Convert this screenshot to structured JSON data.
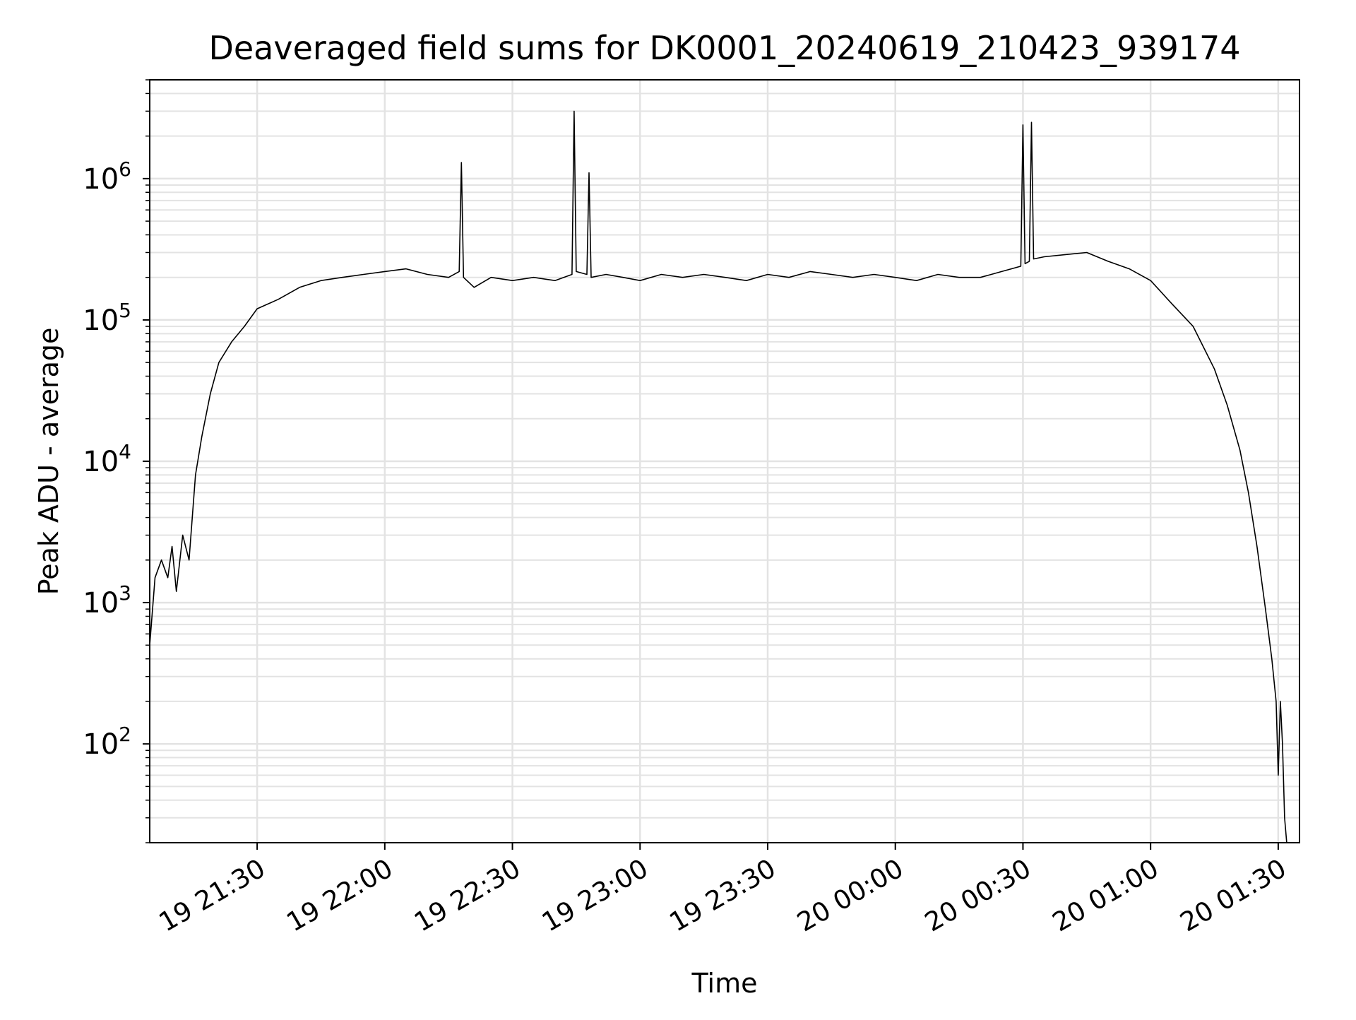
{
  "chart_data": {
    "type": "line",
    "title": "Deaveraged field sums for DK0001_20240619_210423_939174",
    "xlabel": "Time",
    "ylabel": "Peak ADU - average",
    "yscale": "log",
    "ylim": [
      20,
      5000000
    ],
    "xlim": [
      "2024-06-19 21:04:45",
      "2024-06-20 01:35:00"
    ],
    "grid": true,
    "line_color": "#000000",
    "x_ticks": [
      {
        "time": "2024-06-19 21:30",
        "label": "19 21:30"
      },
      {
        "time": "2024-06-19 22:00",
        "label": "19 22:00"
      },
      {
        "time": "2024-06-19 22:30",
        "label": "19 22:30"
      },
      {
        "time": "2024-06-19 23:00",
        "label": "19 23:00"
      },
      {
        "time": "2024-06-19 23:30",
        "label": "19 23:30"
      },
      {
        "time": "2024-06-20 00:00",
        "label": "20 00:00"
      },
      {
        "time": "2024-06-20 00:30",
        "label": "20 00:30"
      },
      {
        "time": "2024-06-20 01:00",
        "label": "20 01:00"
      },
      {
        "time": "2024-06-20 01:30",
        "label": "20 01:30"
      }
    ],
    "y_ticks": [
      {
        "value": 100,
        "base": "10",
        "exp": "2"
      },
      {
        "value": 1000,
        "base": "10",
        "exp": "3"
      },
      {
        "value": 10000,
        "base": "10",
        "exp": "4"
      },
      {
        "value": 100000,
        "base": "10",
        "exp": "5"
      },
      {
        "value": 1000000,
        "base": "10",
        "exp": "6"
      }
    ],
    "series": [
      {
        "x": [
          "2024-06-19 21:04:45",
          "2024-06-19 21:06:00",
          "2024-06-19 21:07:30",
          "2024-06-19 21:09:00",
          "2024-06-19 21:10:00",
          "2024-06-19 21:11:00",
          "2024-06-19 21:12:30",
          "2024-06-19 21:14:00",
          "2024-06-19 21:15:30",
          "2024-06-19 21:17:00",
          "2024-06-19 21:19:00",
          "2024-06-19 21:21:00",
          "2024-06-19 21:24:00",
          "2024-06-19 21:27:00",
          "2024-06-19 21:30:00",
          "2024-06-19 21:35:00",
          "2024-06-19 21:40:00",
          "2024-06-19 21:45:00",
          "2024-06-19 21:50:00",
          "2024-06-19 21:55:00",
          "2024-06-19 22:00:00",
          "2024-06-19 22:05:00",
          "2024-06-19 22:10:00",
          "2024-06-19 22:15:00",
          "2024-06-19 22:17:30",
          "2024-06-19 22:18:00",
          "2024-06-19 22:18:30",
          "2024-06-19 22:21:00",
          "2024-06-19 22:25:00",
          "2024-06-19 22:30:00",
          "2024-06-19 22:35:00",
          "2024-06-19 22:40:00",
          "2024-06-19 22:44:00",
          "2024-06-19 22:44:30",
          "2024-06-19 22:45:00",
          "2024-06-19 22:47:30",
          "2024-06-19 22:48:00",
          "2024-06-19 22:48:30",
          "2024-06-19 22:52:00",
          "2024-06-19 22:56:00",
          "2024-06-19 23:00:00",
          "2024-06-19 23:05:00",
          "2024-06-19 23:10:00",
          "2024-06-19 23:15:00",
          "2024-06-19 23:20:00",
          "2024-06-19 23:25:00",
          "2024-06-19 23:30:00",
          "2024-06-19 23:35:00",
          "2024-06-19 23:40:00",
          "2024-06-19 23:45:00",
          "2024-06-19 23:50:00",
          "2024-06-19 23:55:00",
          "2024-06-20 00:00:00",
          "2024-06-20 00:05:00",
          "2024-06-20 00:10:00",
          "2024-06-20 00:15:00",
          "2024-06-20 00:20:00",
          "2024-06-20 00:25:00",
          "2024-06-20 00:29:30",
          "2024-06-20 00:30:00",
          "2024-06-20 00:30:30",
          "2024-06-20 00:31:30",
          "2024-06-20 00:32:00",
          "2024-06-20 00:32:30",
          "2024-06-20 00:35:00",
          "2024-06-20 00:40:00",
          "2024-06-20 00:45:00",
          "2024-06-20 00:50:00",
          "2024-06-20 00:55:00",
          "2024-06-20 01:00:00",
          "2024-06-20 01:05:00",
          "2024-06-20 01:10:00",
          "2024-06-20 01:15:00",
          "2024-06-20 01:18:00",
          "2024-06-20 01:21:00",
          "2024-06-20 01:23:00",
          "2024-06-20 01:25:00",
          "2024-06-20 01:27:00",
          "2024-06-20 01:28:30",
          "2024-06-20 01:29:30",
          "2024-06-20 01:30:00",
          "2024-06-20 01:30:30",
          "2024-06-20 01:31:00",
          "2024-06-20 01:31:30",
          "2024-06-20 01:32:00"
        ],
        "y": [
          500,
          1500,
          2000,
          1500,
          2500,
          1200,
          3000,
          2000,
          8000,
          15000,
          30000,
          50000,
          70000,
          90000,
          120000,
          140000,
          170000,
          190000,
          200000,
          210000,
          220000,
          230000,
          210000,
          200000,
          220000,
          1300000,
          200000,
          170000,
          200000,
          190000,
          200000,
          190000,
          210000,
          3000000,
          220000,
          210000,
          1100000,
          200000,
          210000,
          200000,
          190000,
          210000,
          200000,
          210000,
          200000,
          190000,
          210000,
          200000,
          220000,
          210000,
          200000,
          210000,
          200000,
          190000,
          210000,
          200000,
          200000,
          220000,
          240000,
          2400000,
          250000,
          260000,
          2500000,
          270000,
          280000,
          290000,
          300000,
          260000,
          230000,
          190000,
          130000,
          90000,
          45000,
          25000,
          12000,
          6000,
          2500,
          900,
          400,
          200,
          60,
          200,
          100,
          30,
          20
        ]
      }
    ]
  }
}
